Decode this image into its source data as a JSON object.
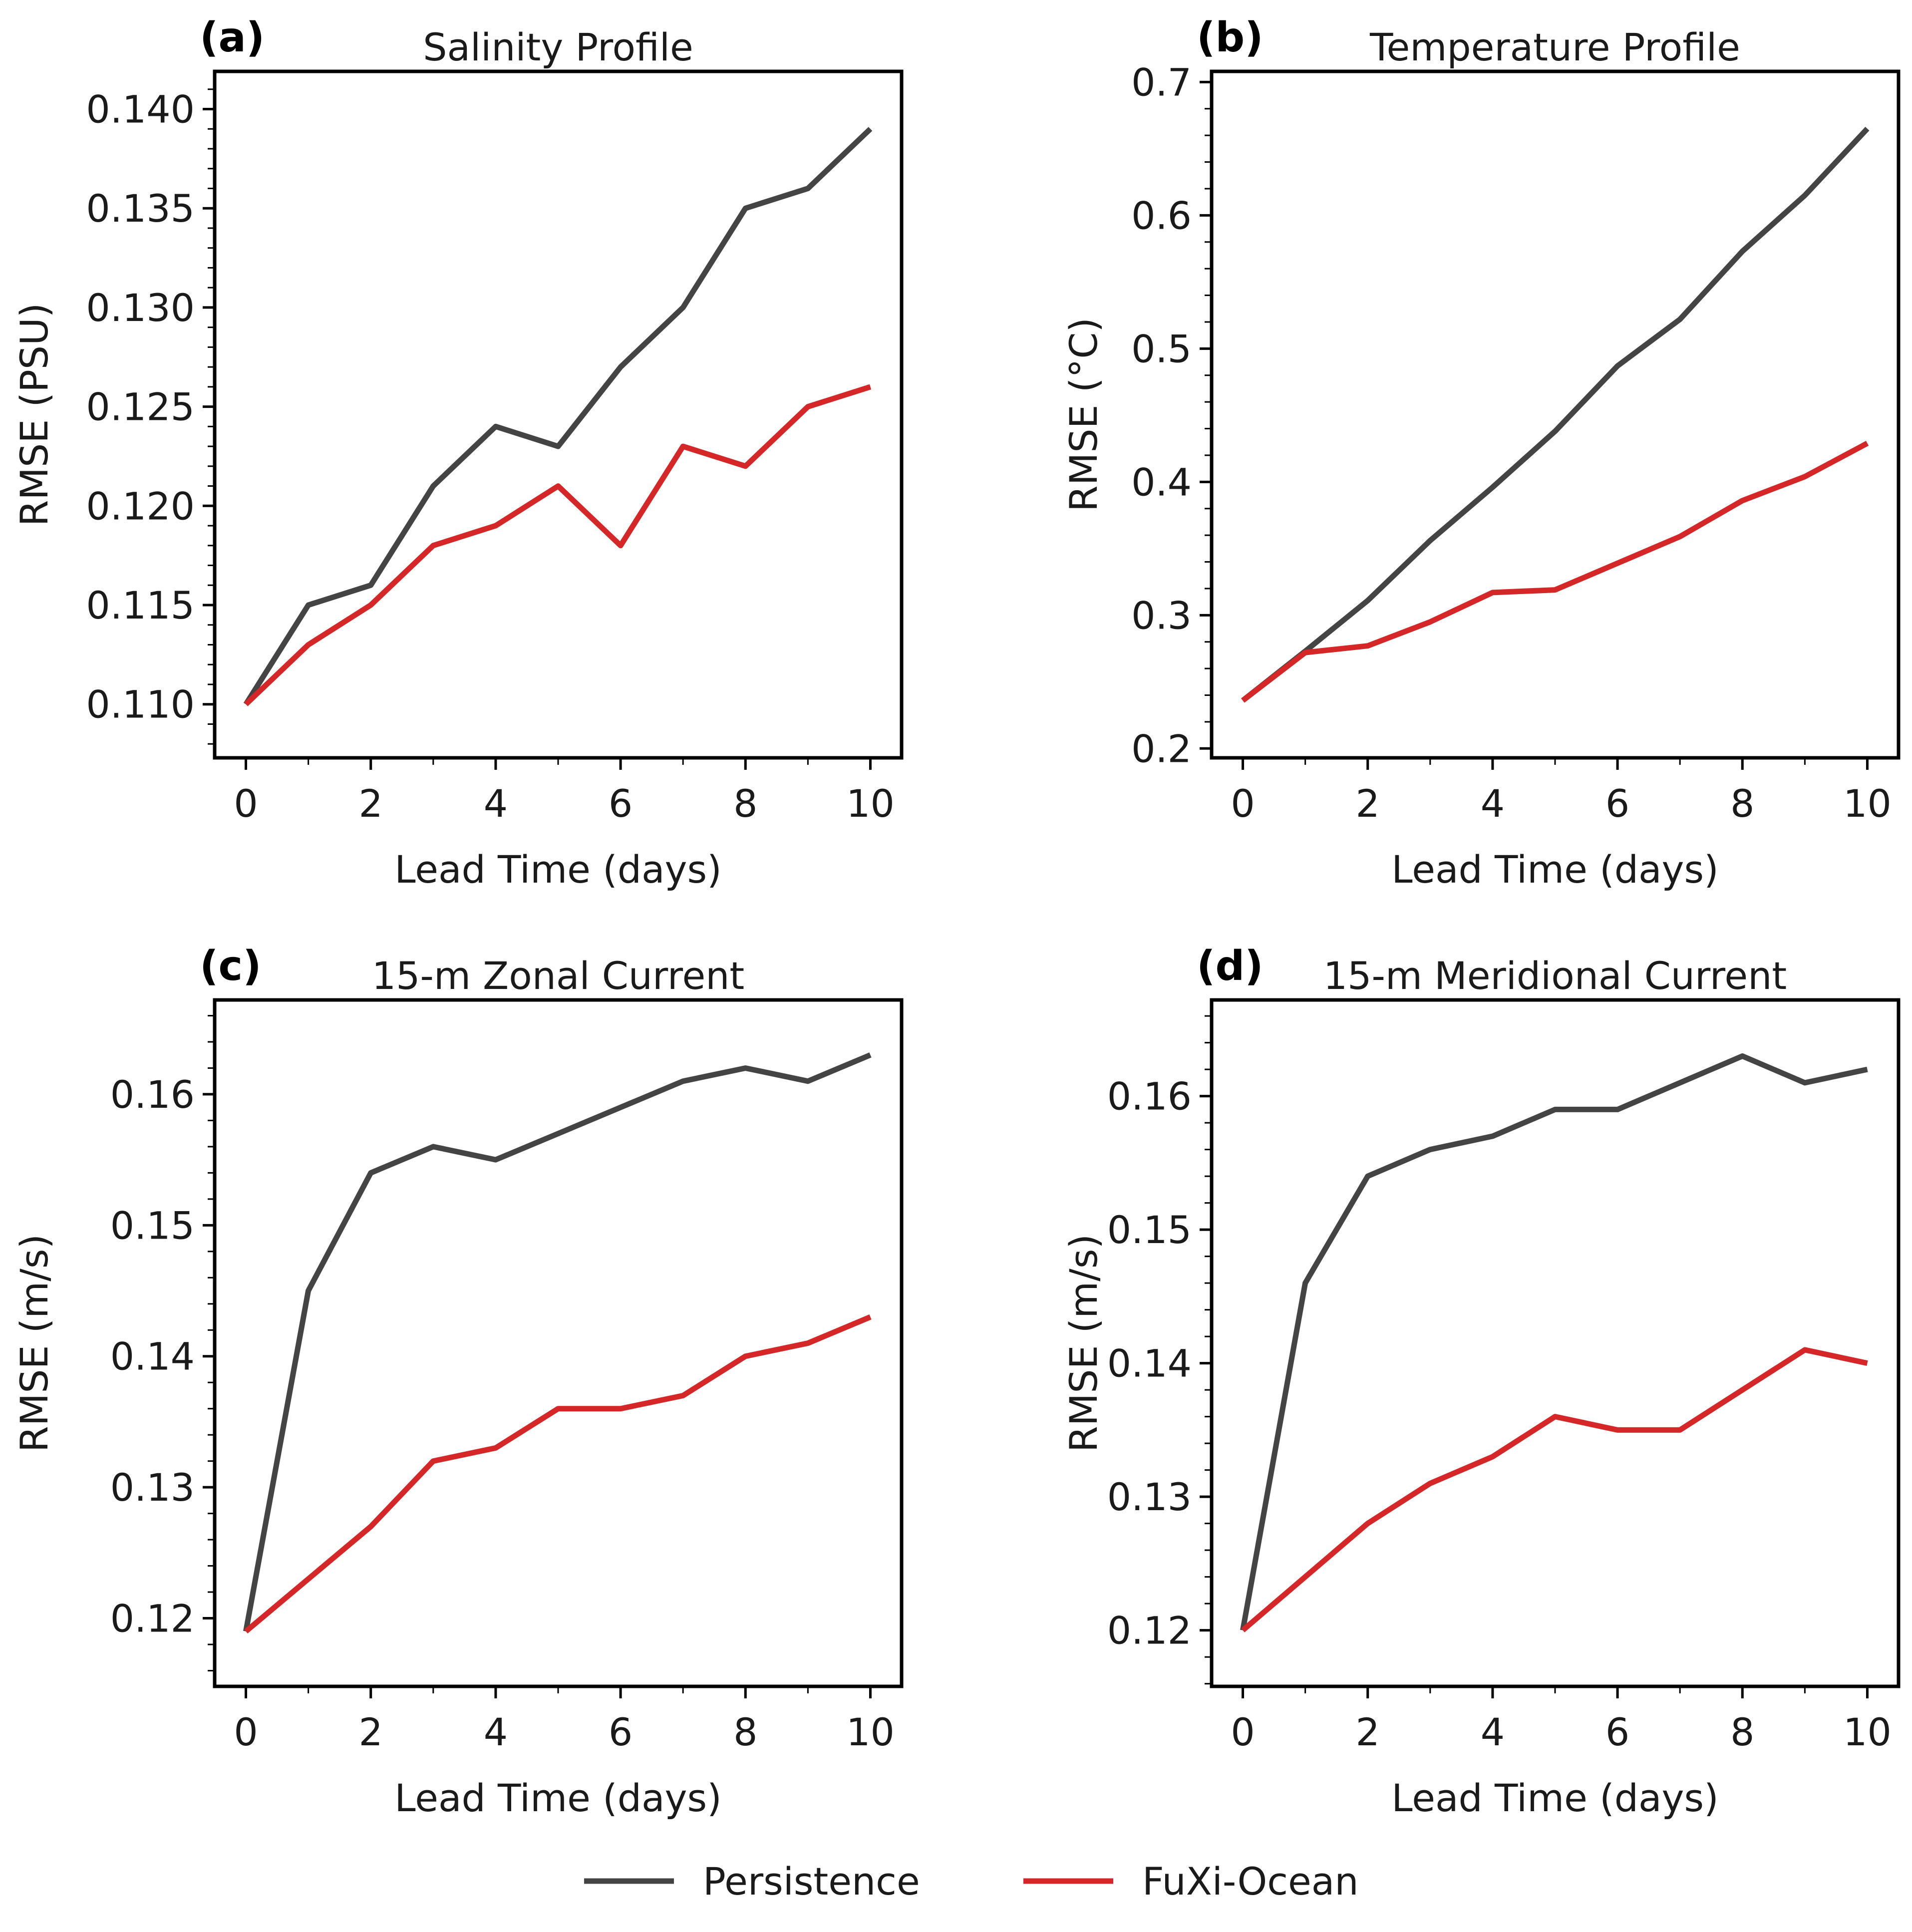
{
  "colors": {
    "persistence": "#444444",
    "fuxi": "#d62728"
  },
  "legend": {
    "placement": "bottom-center",
    "items": [
      {
        "label": "Persistence",
        "color": "#444444"
      },
      {
        "label": "FuXi-Ocean",
        "color": "#d62728"
      }
    ]
  },
  "chart_data": [
    {
      "type": "line",
      "letter": "(a)",
      "title": "Salinity Profile",
      "xlabel": "Lead Time (days)",
      "ylabel": "RMSE (PSU)",
      "xlim": [
        -0.5,
        10.5
      ],
      "ylim": [
        0.1073,
        0.1419
      ],
      "xticks": [
        0,
        2,
        4,
        6,
        8,
        10
      ],
      "xtick_labels": [
        "0",
        "2",
        "4",
        "6",
        "8",
        "10"
      ],
      "yticks": [
        0.11,
        0.115,
        0.12,
        0.125,
        0.13,
        0.135,
        0.14
      ],
      "ytick_labels": [
        "0.110",
        "0.115",
        "0.120",
        "0.125",
        "0.130",
        "0.135",
        "0.140"
      ],
      "yminor_step": 0.001,
      "grid": false,
      "x": [
        0,
        1,
        2,
        3,
        4,
        5,
        6,
        7,
        8,
        9,
        10
      ],
      "series": [
        {
          "name": "Persistence",
          "color": "#444444",
          "values": [
            0.11,
            0.115,
            0.116,
            0.121,
            0.124,
            0.123,
            0.127,
            0.13,
            0.135,
            0.136,
            0.139
          ]
        },
        {
          "name": "FuXi-Ocean",
          "color": "#d62728",
          "values": [
            0.11,
            0.113,
            0.115,
            0.118,
            0.119,
            0.121,
            0.118,
            0.123,
            0.122,
            0.125,
            0.126
          ]
        }
      ]
    },
    {
      "type": "line",
      "letter": "(b)",
      "title": "Temperature Profile",
      "xlabel": "Lead Time (days)",
      "ylabel": "RMSE (°C)",
      "xlim": [
        -0.5,
        10.5
      ],
      "ylim": [
        0.193,
        0.708
      ],
      "xticks": [
        0,
        2,
        4,
        6,
        8,
        10
      ],
      "xtick_labels": [
        "0",
        "2",
        "4",
        "6",
        "8",
        "10"
      ],
      "yticks": [
        0.2,
        0.3,
        0.4,
        0.5,
        0.6,
        0.7
      ],
      "ytick_labels": [
        "0.2",
        "0.3",
        "0.4",
        "0.5",
        "0.6",
        "0.7"
      ],
      "yminor_step": 0.02,
      "grid": false,
      "x": [
        0,
        1,
        2,
        3,
        4,
        5,
        6,
        7,
        8,
        9,
        10
      ],
      "series": [
        {
          "name": "Persistence",
          "color": "#444444",
          "values": [
            0.236,
            0.273,
            0.311,
            0.356,
            0.396,
            0.438,
            0.487,
            0.522,
            0.573,
            0.615,
            0.665
          ]
        },
        {
          "name": "FuXi-Ocean",
          "color": "#d62728",
          "values": [
            0.236,
            0.272,
            0.277,
            0.295,
            0.317,
            0.319,
            0.339,
            0.359,
            0.386,
            0.404,
            0.429
          ]
        }
      ]
    },
    {
      "type": "line",
      "letter": "(c)",
      "title": "15-m Zonal Current",
      "xlabel": "Lead Time (days)",
      "ylabel": "RMSE (m/s)",
      "xlim": [
        -0.5,
        10.5
      ],
      "ylim": [
        0.1148,
        0.1672
      ],
      "xticks": [
        0,
        2,
        4,
        6,
        8,
        10
      ],
      "xtick_labels": [
        "0",
        "2",
        "4",
        "6",
        "8",
        "10"
      ],
      "yticks": [
        0.12,
        0.13,
        0.14,
        0.15,
        0.16
      ],
      "ytick_labels": [
        "0.12",
        "0.13",
        "0.14",
        "0.15",
        "0.16"
      ],
      "yminor_step": 0.002,
      "grid": false,
      "x": [
        0,
        1,
        2,
        3,
        4,
        5,
        6,
        7,
        8,
        9,
        10
      ],
      "series": [
        {
          "name": "Persistence",
          "color": "#444444",
          "values": [
            0.119,
            0.145,
            0.154,
            0.156,
            0.155,
            0.157,
            0.159,
            0.161,
            0.162,
            0.161,
            0.163
          ]
        },
        {
          "name": "FuXi-Ocean",
          "color": "#d62728",
          "values": [
            0.119,
            0.123,
            0.127,
            0.132,
            0.133,
            0.136,
            0.136,
            0.137,
            0.14,
            0.141,
            0.143
          ]
        }
      ]
    },
    {
      "type": "line",
      "letter": "(d)",
      "title": "15-m Meridional Current",
      "xlabel": "Lead Time (days)",
      "ylabel": "RMSE (m/s)",
      "xlim": [
        -0.5,
        10.5
      ],
      "ylim": [
        0.1158,
        0.1672
      ],
      "xticks": [
        0,
        2,
        4,
        6,
        8,
        10
      ],
      "xtick_labels": [
        "0",
        "2",
        "4",
        "6",
        "8",
        "10"
      ],
      "yticks": [
        0.12,
        0.13,
        0.14,
        0.15,
        0.16
      ],
      "ytick_labels": [
        "0.12",
        "0.13",
        "0.14",
        "0.15",
        "0.16"
      ],
      "yminor_step": 0.002,
      "grid": false,
      "x": [
        0,
        1,
        2,
        3,
        4,
        5,
        6,
        7,
        8,
        9,
        10
      ],
      "series": [
        {
          "name": "Persistence",
          "color": "#444444",
          "values": [
            0.12,
            0.146,
            0.154,
            0.156,
            0.157,
            0.159,
            0.159,
            0.161,
            0.163,
            0.161,
            0.162
          ]
        },
        {
          "name": "FuXi-Ocean",
          "color": "#d62728",
          "values": [
            0.12,
            0.124,
            0.128,
            0.131,
            0.133,
            0.136,
            0.135,
            0.135,
            0.138,
            0.141,
            0.14
          ]
        }
      ]
    }
  ]
}
